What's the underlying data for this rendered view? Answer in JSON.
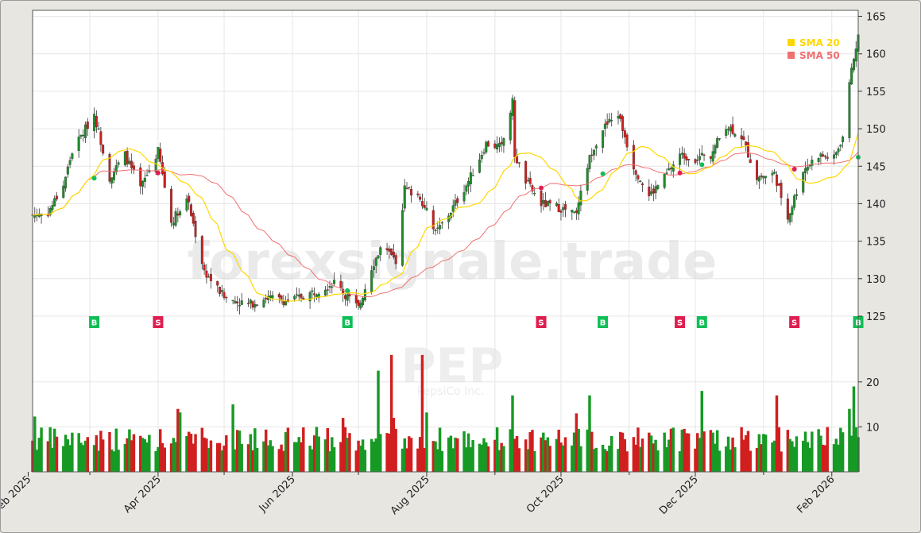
{
  "chart_data": {
    "type": "candlestick",
    "ticker": "PEP",
    "company": "PepsiCo Inc.",
    "watermark": "forexsignale.trade",
    "legend": [
      {
        "name": "SMA 20",
        "color": "#ffd700"
      },
      {
        "name": "SMA 50",
        "color": "#f07070"
      }
    ],
    "legend_position": "top-right",
    "grid": true,
    "price_axis": {
      "ticks": [
        125,
        130,
        135,
        140,
        145,
        150,
        155,
        160,
        165
      ],
      "ylim": [
        121.5,
        165.8
      ],
      "position": "right"
    },
    "volume_axis": {
      "ticks": [
        10,
        20
      ],
      "ylim": [
        0,
        26.5
      ],
      "position": "right"
    },
    "x_axis": {
      "start": "2025-02-03",
      "end": "2026-02-13",
      "ticks": [
        {
          "label": "Feb 2025",
          "date": "2025-02-01"
        },
        {
          "label": "Apr 2025",
          "date": "2025-04-01"
        },
        {
          "label": "Jun 2025",
          "date": "2025-06-01"
        },
        {
          "label": "Aug 2025",
          "date": "2025-08-01"
        },
        {
          "label": "Oct 2025",
          "date": "2025-10-01"
        },
        {
          "label": "Dec 2025",
          "date": "2025-12-01"
        },
        {
          "label": "Feb 2026",
          "date": "2026-02-01"
        }
      ],
      "minor_months": [
        "2025-03-01",
        "2025-05-01",
        "2025-07-01",
        "2025-09-01",
        "2025-11-01",
        "2026-01-01"
      ]
    },
    "close_anchors": [
      [
        "2025-02-03",
        138.5
      ],
      [
        "2025-02-10",
        138.8
      ],
      [
        "2025-02-17",
        142.5
      ],
      [
        "2025-02-21",
        147.0
      ],
      [
        "2025-03-03",
        152.0
      ],
      [
        "2025-03-10",
        143.5
      ],
      [
        "2025-03-17",
        146.5
      ],
      [
        "2025-03-24",
        142.0
      ],
      [
        "2025-04-01",
        147.0
      ],
      [
        "2025-04-07",
        137.5
      ],
      [
        "2025-04-14",
        141.0
      ],
      [
        "2025-04-22",
        131.0
      ],
      [
        "2025-05-01",
        127.5
      ],
      [
        "2025-05-12",
        126.5
      ],
      [
        "2025-05-20",
        127.5
      ],
      [
        "2025-05-30",
        127.0
      ],
      [
        "2025-06-09",
        128.0
      ],
      [
        "2025-06-20",
        129.5
      ],
      [
        "2025-07-01",
        126.0
      ],
      [
        "2025-07-07",
        131.5
      ],
      [
        "2025-07-11",
        134.0
      ],
      [
        "2025-07-18",
        132.5
      ],
      [
        "2025-07-22",
        142.0
      ],
      [
        "2025-07-29",
        141.0
      ],
      [
        "2025-08-05",
        136.0
      ],
      [
        "2025-08-12",
        139.0
      ],
      [
        "2025-08-20",
        143.0
      ],
      [
        "2025-08-28",
        148.0
      ],
      [
        "2025-09-04",
        147.5
      ],
      [
        "2025-09-09",
        153.5
      ],
      [
        "2025-09-10",
        146.5
      ],
      [
        "2025-09-15",
        143.0
      ],
      [
        "2025-09-22",
        140.0
      ],
      [
        "2025-09-30",
        139.5
      ],
      [
        "2025-10-08",
        138.5
      ],
      [
        "2025-10-14",
        146.5
      ],
      [
        "2025-10-20",
        150.0
      ],
      [
        "2025-10-27",
        152.0
      ],
      [
        "2025-11-03",
        145.0
      ],
      [
        "2025-11-10",
        141.0
      ],
      [
        "2025-11-17",
        143.5
      ],
      [
        "2025-11-24",
        146.5
      ],
      [
        "2025-12-01",
        146.0
      ],
      [
        "2025-12-08",
        146.5
      ],
      [
        "2025-12-15",
        150.5
      ],
      [
        "2025-12-22",
        149.0
      ],
      [
        "2025-12-29",
        143.5
      ],
      [
        "2026-01-06",
        144.0
      ],
      [
        "2026-01-12",
        138.0
      ],
      [
        "2026-01-19",
        144.5
      ],
      [
        "2026-01-26",
        146.5
      ],
      [
        "2026-02-02",
        146.0
      ],
      [
        "2026-02-06",
        149.0
      ],
      [
        "2026-02-10",
        158.0
      ],
      [
        "2026-02-13",
        162.5
      ]
    ],
    "volume_spikes": [
      [
        "2025-02-04",
        12.3
      ],
      [
        "2025-04-10",
        14.0
      ],
      [
        "2025-04-11",
        13.2
      ],
      [
        "2025-05-05",
        15.0
      ],
      [
        "2025-06-24",
        12.0
      ],
      [
        "2025-07-10",
        22.5
      ],
      [
        "2025-07-16",
        26.0
      ],
      [
        "2025-07-17",
        12.0
      ],
      [
        "2025-07-30",
        26.0
      ],
      [
        "2025-08-01",
        13.2
      ],
      [
        "2025-09-09",
        17.0
      ],
      [
        "2025-10-08",
        13.0
      ],
      [
        "2025-10-14",
        17.0
      ],
      [
        "2025-12-04",
        18.0
      ],
      [
        "2026-01-07",
        17.0
      ],
      [
        "2026-02-09",
        14.0
      ],
      [
        "2026-02-11",
        19.0
      ]
    ],
    "signals": [
      {
        "date": "2025-03-03",
        "type": "B",
        "price": 143.4
      },
      {
        "date": "2025-04-01",
        "type": "S",
        "price": 144.1
      },
      {
        "date": "2025-06-26",
        "type": "B",
        "price": 128.4
      },
      {
        "date": "2025-09-22",
        "type": "S",
        "price": 142.1
      },
      {
        "date": "2025-10-20",
        "type": "B",
        "price": 144.0
      },
      {
        "date": "2025-11-24",
        "type": "S",
        "price": 144.1
      },
      {
        "date": "2025-12-04",
        "type": "B",
        "price": 145.2
      },
      {
        "date": "2026-01-15",
        "type": "S",
        "price": 144.6
      },
      {
        "date": "2026-02-13",
        "type": "B",
        "price": 146.2
      }
    ],
    "signal_label_price": 124.2,
    "colors": {
      "up": "#1f8c2a",
      "down": "#cc1f1f",
      "buy": "#0fbf55",
      "sell": "#e01e4f",
      "volume_up": "#179a25",
      "volume_down": "#d11f1f"
    }
  }
}
